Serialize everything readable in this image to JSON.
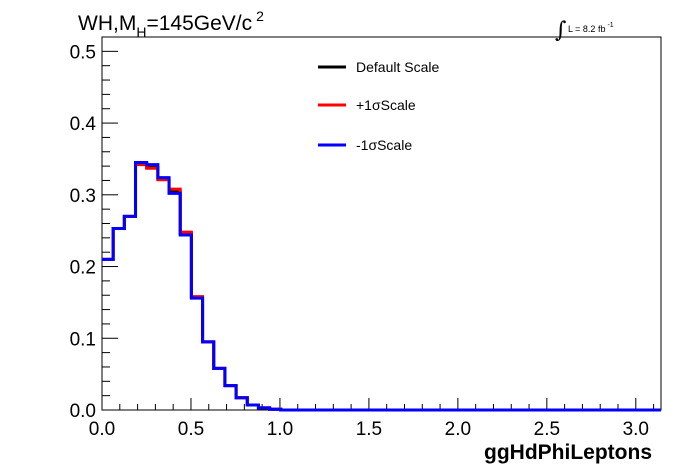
{
  "chart_data": {
    "type": "line",
    "title": {
      "prefix": "WH,M",
      "subscript": "H",
      "middle": "=145GeV/c",
      "superscript": "2"
    },
    "lumi": {
      "symbol": "∫",
      "text": "L = 8.2 fb",
      "superscript": "-1"
    },
    "xlabel": "ggHdPhiLeptons",
    "ylabel": "",
    "xlim": [
      0,
      3.1416
    ],
    "ylim": [
      0,
      0.52
    ],
    "x_ticks": [
      0.0,
      0.5,
      1.0,
      1.5,
      2.0,
      2.5,
      3.0
    ],
    "x_tick_labels": [
      "0.0",
      "0.5",
      "1.0",
      "1.5",
      "2.0",
      "2.5",
      "3.0"
    ],
    "y_ticks": [
      0.0,
      0.1,
      0.2,
      0.3,
      0.4,
      0.5
    ],
    "y_tick_labels": [
      "0.0",
      "0.1",
      "0.2",
      "0.3",
      "0.4",
      "0.5"
    ],
    "grid": false,
    "legend_position": "top-center",
    "bin_width": 0.0628,
    "series": [
      {
        "name": "Default Scale",
        "color": "#000000",
        "values": [
          0.21,
          0.253,
          0.27,
          0.343,
          0.338,
          0.322,
          0.304,
          0.246,
          0.157,
          0.095,
          0.058,
          0.034,
          0.017,
          0.007,
          0.003,
          0.001,
          0.0,
          0.0,
          0.0,
          0.0,
          0.0,
          0.0,
          0.0,
          0.0,
          0.0,
          0.0,
          0.0,
          0.0,
          0.0,
          0.0,
          0.0,
          0.0,
          0.0,
          0.0,
          0.0,
          0.0,
          0.0,
          0.0,
          0.0,
          0.0,
          0.0,
          0.0,
          0.0,
          0.0,
          0.0,
          0.0,
          0.0,
          0.0,
          0.0,
          0.0
        ]
      },
      {
        "name": "+1σScale",
        "color": "#ff0000",
        "values": [
          0.21,
          0.253,
          0.27,
          0.342,
          0.337,
          0.321,
          0.308,
          0.248,
          0.158,
          0.095,
          0.058,
          0.034,
          0.017,
          0.007,
          0.003,
          0.001,
          0.0,
          0.0,
          0.0,
          0.0,
          0.0,
          0.0,
          0.0,
          0.0,
          0.0,
          0.0,
          0.0,
          0.0,
          0.0,
          0.0,
          0.0,
          0.0,
          0.0,
          0.0,
          0.0,
          0.0,
          0.0,
          0.0,
          0.0,
          0.0,
          0.0,
          0.0,
          0.0,
          0.0,
          0.0,
          0.0,
          0.0,
          0.0,
          0.0,
          0.0
        ]
      },
      {
        "name": "-1σScale",
        "color": "#0000ff",
        "values": [
          0.21,
          0.253,
          0.27,
          0.345,
          0.342,
          0.324,
          0.302,
          0.244,
          0.156,
          0.095,
          0.058,
          0.034,
          0.017,
          0.007,
          0.003,
          0.001,
          0.0,
          0.0,
          0.0,
          0.0,
          0.0,
          0.0,
          0.0,
          0.0,
          0.0,
          0.0,
          0.0,
          0.0,
          0.0,
          0.0,
          0.0,
          0.0,
          0.0,
          0.0,
          0.0,
          0.0,
          0.0,
          0.0,
          0.0,
          0.0,
          0.0,
          0.0,
          0.0,
          0.0,
          0.0,
          0.0,
          0.0,
          0.0,
          0.0,
          0.0
        ]
      }
    ]
  }
}
